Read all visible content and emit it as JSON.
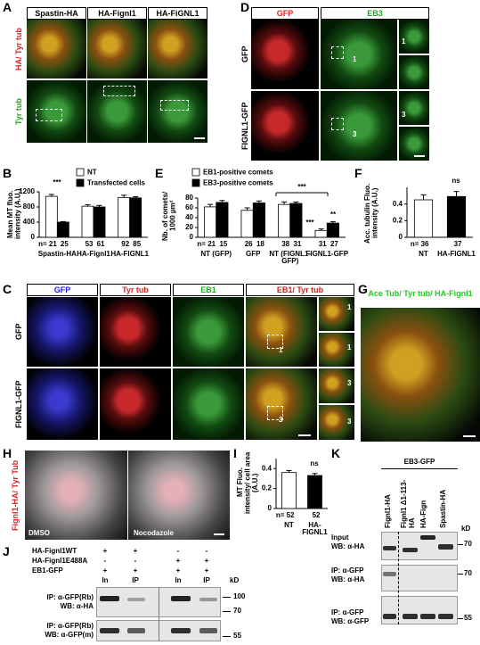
{
  "figure": {
    "panel_labels": [
      "A",
      "B",
      "C",
      "D",
      "E",
      "F",
      "G",
      "H",
      "I",
      "J",
      "K"
    ],
    "A": {
      "columns": [
        "Spastin-HA",
        "HA-Fignl1",
        "HA-FiGNL1"
      ],
      "rows": [
        "HA/ Tyr tub",
        "Tyr tub"
      ]
    },
    "D": {
      "columns": [
        "GFP",
        "EB3"
      ],
      "rows": [
        "GFP",
        "FIGNL1-GFP"
      ],
      "insets": [
        "1",
        "1",
        "3",
        "3"
      ]
    },
    "C": {
      "columns": [
        "GFP",
        "Tyr tub",
        "EB1",
        "EB1/ Tyr tub"
      ],
      "rows": [
        "GFP",
        "FIGNL1-GFP"
      ],
      "insets": [
        "1",
        "1",
        "1",
        "3",
        "3",
        "3"
      ]
    },
    "G": {
      "label": "Ace Tub/ Tyr tub/ HA-Fignl1"
    },
    "H": {
      "label": "Fignl1-HA/ Tyr Tub",
      "conditions": [
        "DMSO",
        "Nocodazole"
      ]
    },
    "J": {
      "conditions": [
        "HA-Fignl1WT",
        "HA-Fignl1E488A",
        "EB1-GFP"
      ],
      "signs": [
        [
          "+",
          "+",
          "-",
          "-"
        ],
        [
          "-",
          "-",
          "+",
          "+"
        ],
        [
          "+",
          "+",
          "+",
          "+"
        ]
      ],
      "lanes": [
        "In",
        "IP",
        "In",
        "IP"
      ],
      "kd": "kD",
      "blots": [
        {
          "line1": "IP: α-GFP(Rb)",
          "line2": "WB: α-HA",
          "markers": [
            "100",
            "70"
          ]
        },
        {
          "line1": "IP: α-GFP(Rb)",
          "line2": "WB: α-GFP(m)",
          "markers": [
            "55"
          ]
        }
      ]
    },
    "K": {
      "header": "EB3-GFP",
      "lanes": [
        "Fignl1-HA",
        "Fignl1 Δ1-113-HA",
        "HA-Fign",
        "Spastin-HA"
      ],
      "kd": "kD",
      "blots": [
        {
          "line1": "Input",
          "line2": "WB: α-HA",
          "markers": [
            "70"
          ]
        },
        {
          "line1": "IP: α-GFP",
          "line2": "WB: α-HA",
          "markers": [
            "70"
          ]
        },
        {
          "line1": "IP: α-GFP",
          "line2": "WB: α-GFP",
          "markers": [
            "55"
          ]
        }
      ]
    }
  },
  "chart_data": [
    {
      "type": "bar",
      "ylabel": "Mean MT fluo. intensity (A.U.)",
      "ylim": [
        0,
        1200
      ],
      "yticks": [
        0,
        400,
        800,
        1200
      ],
      "categories": [
        "Spastin-HA",
        "HA-Fignl1",
        "HA-FIGNL1"
      ],
      "series": [
        {
          "name": "NT",
          "color": "#ffffff",
          "values": [
            1080,
            820,
            1050
          ],
          "errors": [
            50,
            40,
            60
          ],
          "n_labels": [
            "n= 21",
            "53",
            "92"
          ]
        },
        {
          "name": "Transfected cells",
          "color": "#000000",
          "values": [
            400,
            800,
            1040
          ],
          "errors": [
            15,
            40,
            30
          ],
          "n_labels": [
            "25",
            "61",
            "85"
          ]
        }
      ],
      "annotations": [
        "***"
      ]
    },
    {
      "type": "bar",
      "ylabel": "Nb. of comets/ 1000 µm²",
      "ylim": [
        0,
        80
      ],
      "yticks": [
        0,
        20,
        40,
        60,
        80
      ],
      "categories": [
        "NT (GFP)",
        "GFP",
        "NT (FIGNL1-GFP)",
        "FIGNL1-GFP"
      ],
      "series": [
        {
          "name": "EB1-positive comets",
          "color": "#ffffff",
          "values": [
            62,
            55,
            67,
            14
          ],
          "errors": [
            5,
            5,
            5,
            3
          ],
          "n_labels": [
            "n= 21",
            "26",
            "38",
            "31"
          ]
        },
        {
          "name": "EB3-positive comets",
          "color": "#000000",
          "values": [
            71,
            70,
            69,
            29
          ],
          "errors": [
            4,
            4,
            3,
            3
          ],
          "n_labels": [
            "15",
            "18",
            "31",
            "27"
          ]
        }
      ],
      "annotations": [
        "***",
        "***",
        "**"
      ]
    },
    {
      "type": "bar",
      "ylabel": "Acc. tubulin Fluo. intensity (A.U.)",
      "ylim": [
        0,
        0.6
      ],
      "yticks": [
        0,
        0.2,
        0.4
      ],
      "categories": [
        "NT",
        "HA-FIGNL1"
      ],
      "series": [
        {
          "colors": [
            "#ffffff",
            "#000000"
          ],
          "values": [
            0.45,
            0.49
          ],
          "errors": [
            0.06,
            0.06
          ],
          "n_labels": [
            "n= 36",
            "37"
          ]
        }
      ],
      "annotations": [
        "ns"
      ]
    },
    {
      "type": "bar",
      "ylabel": "MT Fluo. intensity/ cell area (A.U.)",
      "ylim": [
        0,
        0.5
      ],
      "yticks": [
        0,
        0.2,
        0.4
      ],
      "categories": [
        "NT",
        "HA-FIGNL1"
      ],
      "series": [
        {
          "colors": [
            "#ffffff",
            "#000000"
          ],
          "values": [
            0.36,
            0.33
          ],
          "errors": [
            0.02,
            0.02
          ],
          "n_labels": [
            "n= 52",
            "52"
          ]
        }
      ],
      "annotations": [
        "ns"
      ]
    }
  ]
}
